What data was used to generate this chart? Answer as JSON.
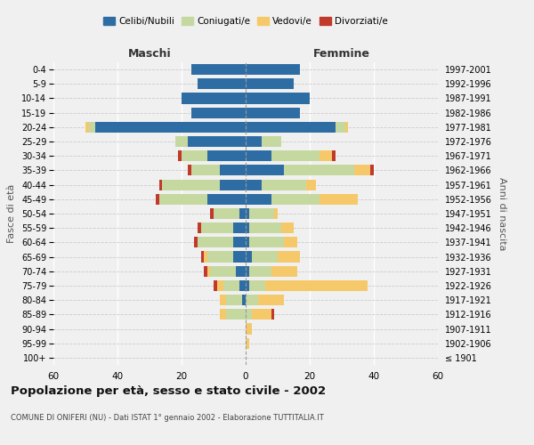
{
  "age_groups": [
    "100+",
    "95-99",
    "90-94",
    "85-89",
    "80-84",
    "75-79",
    "70-74",
    "65-69",
    "60-64",
    "55-59",
    "50-54",
    "45-49",
    "40-44",
    "35-39",
    "30-34",
    "25-29",
    "20-24",
    "15-19",
    "10-14",
    "5-9",
    "0-4"
  ],
  "birth_years": [
    "≤ 1901",
    "1902-1906",
    "1907-1911",
    "1912-1916",
    "1917-1921",
    "1922-1926",
    "1927-1931",
    "1932-1936",
    "1937-1941",
    "1942-1946",
    "1947-1951",
    "1952-1956",
    "1957-1961",
    "1962-1966",
    "1967-1971",
    "1972-1976",
    "1977-1981",
    "1982-1986",
    "1987-1991",
    "1992-1996",
    "1997-2001"
  ],
  "male": {
    "celibi": [
      0,
      0,
      0,
      0,
      1,
      2,
      3,
      4,
      4,
      4,
      2,
      12,
      8,
      8,
      12,
      18,
      47,
      17,
      20,
      15,
      17
    ],
    "coniugati": [
      0,
      0,
      0,
      6,
      5,
      5,
      8,
      8,
      11,
      10,
      8,
      15,
      18,
      9,
      8,
      4,
      2,
      0,
      0,
      0,
      0
    ],
    "vedovi": [
      0,
      0,
      0,
      2,
      2,
      2,
      1,
      1,
      0,
      0,
      0,
      0,
      0,
      0,
      0,
      0,
      1,
      0,
      0,
      0,
      0
    ],
    "divorziati": [
      0,
      0,
      0,
      0,
      0,
      1,
      1,
      1,
      1,
      1,
      1,
      1,
      1,
      1,
      1,
      0,
      0,
      0,
      0,
      0,
      0
    ]
  },
  "female": {
    "nubili": [
      0,
      0,
      0,
      0,
      0,
      1,
      1,
      2,
      1,
      1,
      1,
      8,
      5,
      12,
      8,
      5,
      28,
      17,
      20,
      15,
      17
    ],
    "coniugate": [
      0,
      0,
      0,
      2,
      4,
      5,
      7,
      8,
      11,
      10,
      8,
      15,
      14,
      22,
      15,
      6,
      3,
      0,
      0,
      0,
      0
    ],
    "vedove": [
      0,
      1,
      2,
      6,
      8,
      32,
      8,
      7,
      4,
      4,
      1,
      12,
      3,
      5,
      4,
      0,
      1,
      0,
      0,
      0,
      0
    ],
    "divorziate": [
      0,
      0,
      0,
      1,
      0,
      0,
      0,
      0,
      0,
      0,
      0,
      0,
      0,
      1,
      1,
      0,
      0,
      0,
      0,
      0,
      0
    ]
  },
  "colors": {
    "celibi": "#2E6DA4",
    "coniugati": "#C5D8A0",
    "vedovi": "#F5C96A",
    "divorziati": "#C0392B"
  },
  "xlim": 60,
  "title": "Popolazione per età, sesso e stato civile - 2002",
  "subtitle": "COMUNE DI ONIFERI (NU) - Dati ISTAT 1° gennaio 2002 - Elaborazione TUTTITALIA.IT",
  "ylabel_left": "Fasce di età",
  "ylabel_right": "Anni di nascita",
  "xlabel_left": "Maschi",
  "xlabel_right": "Femmine",
  "legend_labels": [
    "Celibi/Nubili",
    "Coniugati/e",
    "Vedovi/e",
    "Divorziati/e"
  ],
  "background_color": "#f0f0f0",
  "plot_bg_color": "#f0f0f0"
}
